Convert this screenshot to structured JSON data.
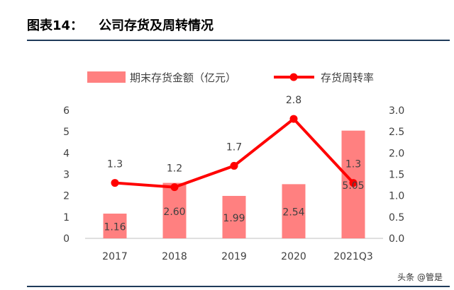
{
  "title": {
    "label": "图表14：",
    "text": "公司存货及周转情况"
  },
  "watermark": "头条 @管是",
  "chart_data": {
    "type": "bar",
    "categories": [
      "2017",
      "2018",
      "2019",
      "2020",
      "2021Q3"
    ],
    "series": [
      {
        "name": "期末存货金额（亿元）",
        "type": "bar",
        "axis": "left",
        "values": [
          1.16,
          2.6,
          1.99,
          2.54,
          5.05
        ],
        "color": "#ff8080"
      },
      {
        "name": "存货周转率",
        "type": "line",
        "axis": "right",
        "values": [
          1.3,
          1.2,
          1.7,
          2.8,
          1.3
        ],
        "color": "#ff0000"
      }
    ],
    "bar_labels": [
      "1.16",
      "2.60",
      "1.99",
      "2.54",
      "5.05"
    ],
    "line_labels": [
      "1.3",
      "1.2",
      "1.7",
      "2.8",
      "1.3"
    ],
    "y_left": {
      "lim": [
        0,
        6
      ],
      "ticks": [
        "0",
        "1",
        "2",
        "3",
        "4",
        "5",
        "6"
      ]
    },
    "y_right": {
      "lim": [
        0,
        3.0
      ],
      "ticks": [
        "0.0",
        "0.5",
        "1.0",
        "1.5",
        "2.0",
        "2.5",
        "3.0"
      ]
    },
    "legend": {
      "position": "top"
    },
    "grid": false
  }
}
